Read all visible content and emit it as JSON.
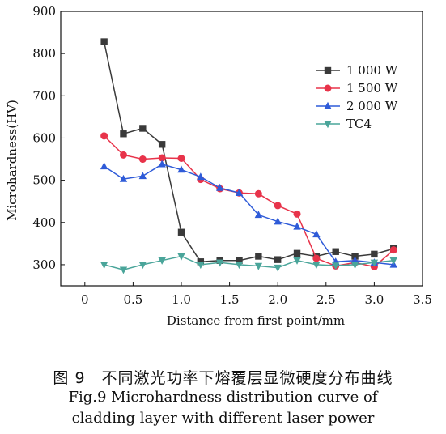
{
  "chart_data": {
    "type": "line",
    "xlabel": "Distance from first point/mm",
    "ylabel": "Microhardness(HV)",
    "xlim": [
      -0.25,
      3.5
    ],
    "ylim": [
      250,
      900
    ],
    "xticks": [
      0,
      0.5,
      1.0,
      1.5,
      2.0,
      2.5,
      3.0,
      3.5
    ],
    "xtick_labels": [
      "0",
      "0.5",
      "1.0",
      "1.5",
      "2.0",
      "2.5",
      "3.0",
      "3.5"
    ],
    "yticks": [
      300,
      400,
      500,
      600,
      700,
      800,
      900
    ],
    "ytick_labels": [
      "300",
      "400",
      "500",
      "600",
      "700",
      "800",
      "900"
    ],
    "grid": false,
    "legend_position": "right",
    "series": [
      {
        "name": "1 000 W",
        "color": "#3a3a3a",
        "marker": "square",
        "points": [
          [
            0.2,
            828
          ],
          [
            0.4,
            610
          ],
          [
            0.6,
            623
          ],
          [
            0.8,
            585
          ],
          [
            1.0,
            377
          ],
          [
            1.2,
            307
          ],
          [
            1.4,
            310
          ],
          [
            1.6,
            310
          ],
          [
            1.8,
            320
          ],
          [
            2.0,
            312
          ],
          [
            2.2,
            327
          ],
          [
            2.4,
            320
          ],
          [
            2.6,
            331
          ],
          [
            2.8,
            320
          ],
          [
            3.0,
            325
          ],
          [
            3.2,
            338
          ]
        ]
      },
      {
        "name": "1 500 W",
        "color": "#e8334a",
        "marker": "circle",
        "points": [
          [
            0.2,
            605
          ],
          [
            0.4,
            560
          ],
          [
            0.6,
            550
          ],
          [
            0.8,
            553
          ],
          [
            1.0,
            552
          ],
          [
            1.2,
            502
          ],
          [
            1.4,
            480
          ],
          [
            1.6,
            470
          ],
          [
            1.8,
            468
          ],
          [
            2.0,
            440
          ],
          [
            2.2,
            420
          ],
          [
            2.4,
            315
          ],
          [
            2.6,
            297
          ],
          [
            2.8,
            305
          ],
          [
            3.0,
            295
          ],
          [
            3.2,
            335
          ]
        ]
      },
      {
        "name": "2 000 W",
        "color": "#2f5bd8",
        "marker": "triangle-up",
        "points": [
          [
            0.2,
            533
          ],
          [
            0.4,
            503
          ],
          [
            0.6,
            510
          ],
          [
            0.8,
            538
          ],
          [
            1.0,
            525
          ],
          [
            1.2,
            508
          ],
          [
            1.4,
            482
          ],
          [
            1.6,
            470
          ],
          [
            1.8,
            418
          ],
          [
            2.0,
            402
          ],
          [
            2.2,
            390
          ],
          [
            2.4,
            372
          ],
          [
            2.6,
            307
          ],
          [
            2.8,
            310
          ],
          [
            3.0,
            305
          ],
          [
            3.2,
            300
          ]
        ]
      },
      {
        "name": "TC4",
        "color": "#4aa59a",
        "marker": "triangle-down",
        "points": [
          [
            0.2,
            300
          ],
          [
            0.4,
            288
          ],
          [
            0.6,
            300
          ],
          [
            0.8,
            310
          ],
          [
            1.0,
            320
          ],
          [
            1.2,
            300
          ],
          [
            1.4,
            305
          ],
          [
            1.6,
            300
          ],
          [
            1.8,
            297
          ],
          [
            2.0,
            293
          ],
          [
            2.2,
            310
          ],
          [
            2.4,
            300
          ],
          [
            2.6,
            298
          ],
          [
            2.8,
            300
          ],
          [
            3.0,
            305
          ],
          [
            3.2,
            310
          ]
        ]
      }
    ]
  },
  "caption": {
    "cn": "图 9　不同激光功率下熔覆层显微硬度分布曲线",
    "en_line1": "Fig.9 Microhardness distribution curve of",
    "en_line2": "cladding layer with different laser power"
  }
}
